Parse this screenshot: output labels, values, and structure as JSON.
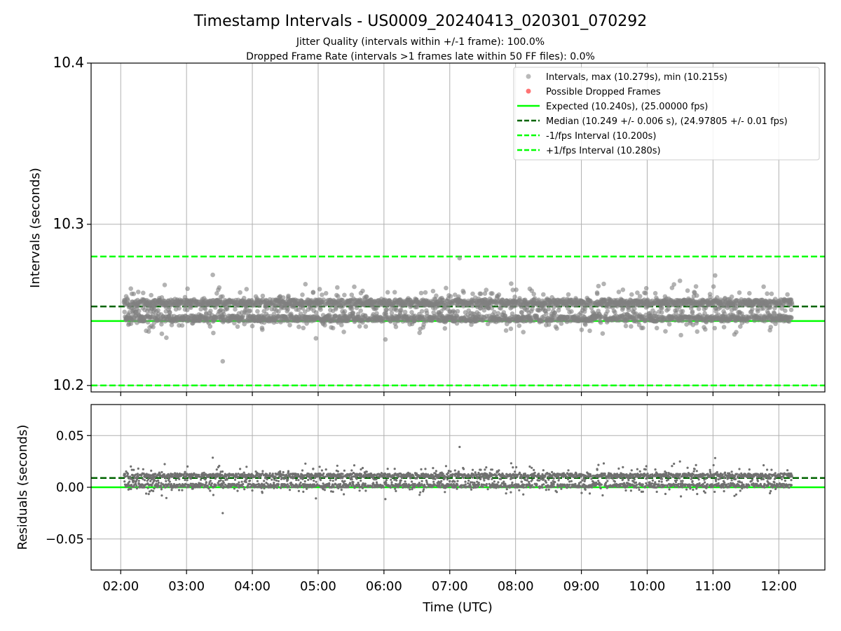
{
  "title": "Timestamp Intervals - US0009_20240413_020301_070292",
  "subtitle_lines": [
    "Jitter Quality (intervals within +/-1 frame): 100.0%",
    "Dropped Frame Rate (intervals >1 frames late within 50 FF files): 0.0%"
  ],
  "colors": {
    "points": "#808080",
    "dropped": "#ff0000",
    "expected": "#00ff00",
    "median": "#006400",
    "interval_bounds": "#00ff00",
    "residual_points": "#707070",
    "grid": "#b0b0b0"
  },
  "chart_data": [
    {
      "type": "scatter",
      "panel": "intervals",
      "ylabel": "Intervals (seconds)",
      "xlabel": "",
      "x_axis_hours": [
        1.55,
        12.7
      ],
      "ylim": [
        10.196,
        10.4
      ],
      "y_ticks": [
        10.2,
        10.3,
        10.4
      ],
      "y_tick_labels": [
        "10.2",
        "10.3",
        "10.4"
      ],
      "grid": true,
      "legend_position": "top-right",
      "x_range_hours": [
        2.05,
        12.2
      ],
      "n_points": 3400,
      "center_value": 10.247,
      "spread": 0.006,
      "max_value": 10.279,
      "min_value": 10.215,
      "legend": [
        {
          "label": "Intervals, max (10.279s), min (10.215s)",
          "marker": "dot",
          "color": "#808080"
        },
        {
          "label": "Possible Dropped Frames",
          "marker": "dot",
          "color": "#ff0000"
        },
        {
          "label": "Expected (10.240s), (25.00000 fps)",
          "marker": "solid",
          "color": "#00ff00"
        },
        {
          "label": "Median (10.249 +/- 0.006 s), (24.97805 +/- 0.01 fps)",
          "marker": "dashed",
          "color": "#006400"
        },
        {
          "label": "-1/fps Interval (10.200s)",
          "marker": "dashed",
          "color": "#00ff00"
        },
        {
          "label": "+1/fps Interval (10.280s)",
          "marker": "dashed",
          "color": "#00ff00"
        }
      ],
      "reference_lines": [
        {
          "name": "expected",
          "value": 10.24,
          "style": "solid"
        },
        {
          "name": "median",
          "value": 10.249,
          "style": "dashed"
        },
        {
          "name": "minus-1fps",
          "value": 10.2,
          "style": "dashed"
        },
        {
          "name": "plus-1fps",
          "value": 10.28,
          "style": "dashed"
        }
      ]
    },
    {
      "type": "scatter",
      "panel": "residuals",
      "ylabel": "Residuals (seconds)",
      "xlabel": "Time (UTC)",
      "x_axis_hours": [
        1.55,
        12.7
      ],
      "ylim": [
        -0.08,
        0.08
      ],
      "y_ticks": [
        -0.05,
        0.0,
        0.05
      ],
      "y_tick_labels": [
        "−0.05",
        "0.00",
        "0.05"
      ],
      "x_ticks": [
        2,
        3,
        4,
        5,
        6,
        7,
        8,
        9,
        10,
        11,
        12
      ],
      "x_tick_labels": [
        "02:00",
        "03:00",
        "04:00",
        "05:00",
        "06:00",
        "07:00",
        "08:00",
        "09:00",
        "10:00",
        "11:00",
        "12:00"
      ],
      "grid": true,
      "reference_lines": [
        {
          "name": "zero",
          "value": 0.0,
          "style": "solid"
        },
        {
          "name": "median-offset",
          "value": 0.009,
          "style": "dashed"
        }
      ]
    }
  ]
}
